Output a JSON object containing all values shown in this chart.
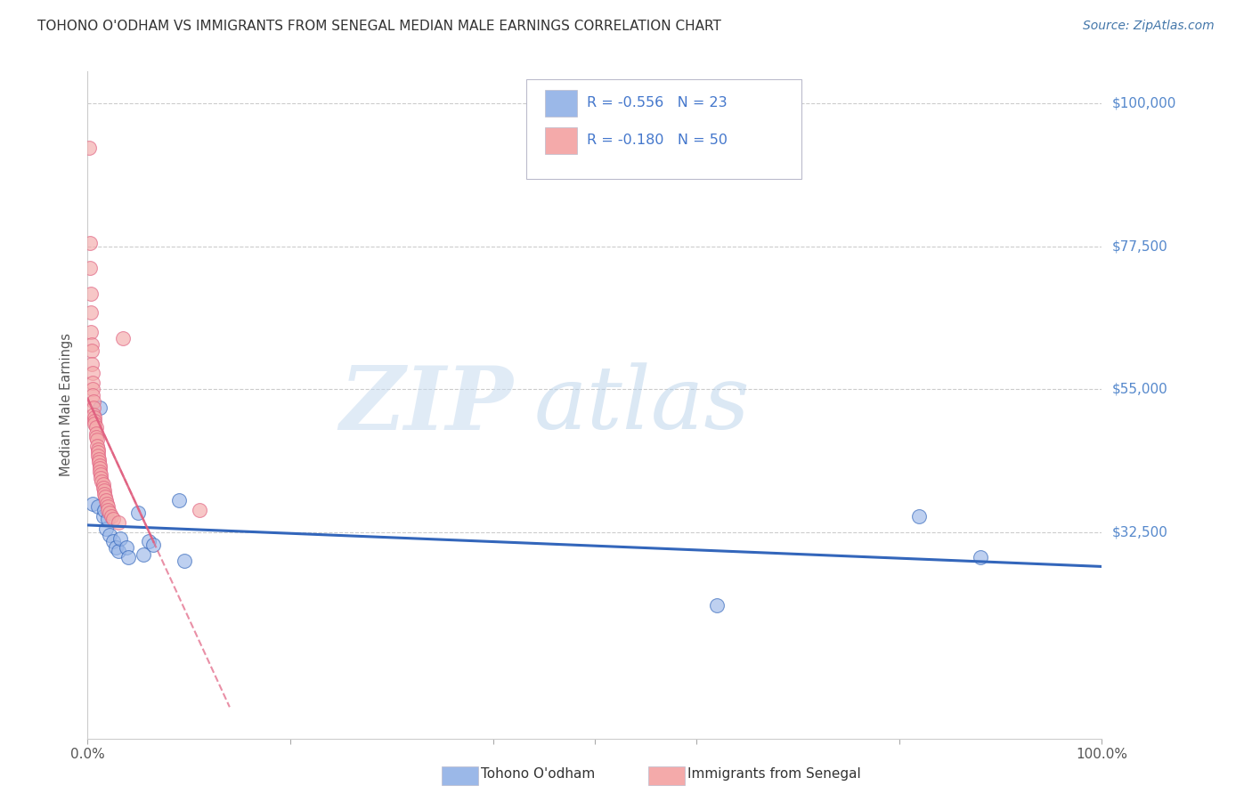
{
  "title": "TOHONO O'ODHAM VS IMMIGRANTS FROM SENEGAL MEDIAN MALE EARNINGS CORRELATION CHART",
  "source": "Source: ZipAtlas.com",
  "ylabel": "Median Male Earnings",
  "xlim": [
    0,
    1.0
  ],
  "ylim": [
    0,
    105000
  ],
  "yticks": [
    0,
    32500,
    55000,
    77500,
    100000
  ],
  "ytick_labels": [
    "",
    "$32,500",
    "$55,000",
    "$77,500",
    "$100,000"
  ],
  "watermark_zip": "ZIP",
  "watermark_atlas": "atlas",
  "legend_text_color": "#4477CC",
  "color_blue": "#9BB8E8",
  "color_pink": "#F4AAAA",
  "color_blue_line": "#3366BB",
  "color_pink_line": "#E06080",
  "color_title": "#333333",
  "color_source": "#4477AA",
  "color_ytick": "#5588CC",
  "blue_scatter_x": [
    0.005,
    0.01,
    0.012,
    0.015,
    0.016,
    0.018,
    0.02,
    0.022,
    0.025,
    0.028,
    0.03,
    0.032,
    0.038,
    0.04,
    0.05,
    0.055,
    0.06,
    0.065,
    0.09,
    0.095,
    0.62,
    0.82,
    0.88
  ],
  "blue_scatter_y": [
    37000,
    36500,
    52000,
    35000,
    36000,
    33000,
    34500,
    32000,
    31000,
    30000,
    29500,
    31500,
    30000,
    28500,
    35500,
    29000,
    31000,
    30500,
    37500,
    28000,
    21000,
    35000,
    28500
  ],
  "pink_scatter_x": [
    0.001,
    0.002,
    0.002,
    0.003,
    0.003,
    0.003,
    0.004,
    0.004,
    0.004,
    0.005,
    0.005,
    0.005,
    0.005,
    0.006,
    0.006,
    0.006,
    0.007,
    0.007,
    0.007,
    0.008,
    0.008,
    0.008,
    0.009,
    0.009,
    0.01,
    0.01,
    0.01,
    0.011,
    0.011,
    0.012,
    0.012,
    0.012,
    0.013,
    0.013,
    0.014,
    0.015,
    0.015,
    0.016,
    0.016,
    0.017,
    0.018,
    0.019,
    0.02,
    0.02,
    0.022,
    0.023,
    0.025,
    0.03,
    0.035,
    0.11
  ],
  "pink_scatter_y": [
    93000,
    78000,
    74000,
    70000,
    67000,
    64000,
    62000,
    61000,
    59000,
    57500,
    56000,
    55000,
    54000,
    53000,
    52000,
    51000,
    50500,
    50000,
    49500,
    49000,
    48000,
    47500,
    47000,
    46000,
    45500,
    45000,
    44500,
    44000,
    43500,
    43000,
    42500,
    42000,
    41500,
    41000,
    40500,
    40000,
    39500,
    39000,
    38500,
    38000,
    37500,
    37000,
    36500,
    36000,
    35500,
    35000,
    34500,
    34000,
    63000,
    36000
  ],
  "blue_trendline_x": [
    0.0,
    1.0
  ],
  "blue_trendline_y": [
    37500,
    24000
  ],
  "pink_trendline_x": [
    0.0,
    0.13
  ],
  "pink_trendline_y": [
    52000,
    35000
  ]
}
